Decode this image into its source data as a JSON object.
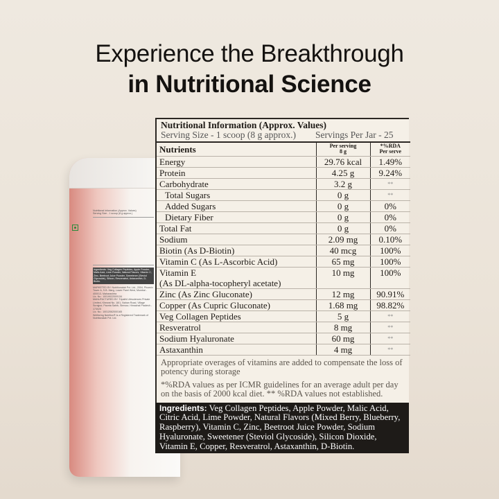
{
  "headline": {
    "line1": "Experience the Breakthrough",
    "line2": "in Nutritional Science"
  },
  "panel": {
    "title": "Nutritional Information (Approx. Values)",
    "serving_size": "Serving Size - 1 scoop (8 g approx.)",
    "servings_per_jar": "Servings Per Jar - 25",
    "columns": {
      "nutrients": "Nutrients",
      "per_serving": "Per serving",
      "per_serving_unit": "8 g",
      "rda": "*%RDA",
      "rda_unit": "Per serve"
    },
    "rows": [
      {
        "name": "Energy",
        "amount": "29.76 kcal",
        "rda": "1.49%"
      },
      {
        "name": "Protein",
        "amount": "4.25 g",
        "rda": "9.24%"
      },
      {
        "name": "Carbohydrate",
        "amount": "3.2 g",
        "rda": "**"
      },
      {
        "name": "Total Sugars",
        "amount": "0 g",
        "rda": "**"
      },
      {
        "name": "Added Sugars",
        "amount": "0 g",
        "rda": "0%"
      },
      {
        "name": "Dietary Fiber",
        "amount": "0 g",
        "rda": "0%"
      },
      {
        "name": "Total Fat",
        "amount": "0 g",
        "rda": "0%"
      },
      {
        "name": "Sodium",
        "amount": "2.09 mg",
        "rda": "0.10%"
      },
      {
        "name": "Biotin (As D-Biotin)",
        "amount": "40 mcg",
        "rda": "100%"
      },
      {
        "name": "Vitamin C (As L-Ascorbic Acid)",
        "amount": "65 mg",
        "rda": "100%"
      },
      {
        "name": "Vitamin E",
        "name2": "(As DL-alpha-tocopheryl acetate)",
        "amount": "10 mg",
        "rda": "100%"
      },
      {
        "name": "Zinc (As Zinc Gluconate)",
        "amount": "12 mg",
        "rda": "90.91%"
      },
      {
        "name": "Copper (As Cupric Gluconate)",
        "amount": "1.68 mg",
        "rda": "98.82%"
      },
      {
        "name": "Veg Collagen Peptides",
        "amount": "5 g",
        "rda": "**"
      },
      {
        "name": "Resveratrol",
        "amount": "8 mg",
        "rda": "**"
      },
      {
        "name": "Sodium Hyaluronate",
        "amount": "60 mg",
        "rda": "**"
      },
      {
        "name": "Astaxanthin",
        "amount": "4 mg",
        "rda": "**"
      }
    ],
    "note1": "Appropriate overages of vitamins are added to compensate the loss of potency during storage",
    "note2": "*%RDA values as per ICMR guidelines for an average adult per day on the basis of 2000 kcal diet. ** %RDA values not established."
  },
  "ingredients": {
    "label": "Ingredients:",
    "text": "Veg Collagen Peptides, Apple Powder, Malic Acid, Citric Acid, Lime Powder, Natural Flavors (Mixed Berry, Blueberry, Raspberry), Vitamin C, Zinc, Beetroot Juice Powder, Sodium Hyaluronate, Sweetener (Steviol Glycoside), Silicon Dioxide, Vitamin E, Copper, Resveratrol, Astaxanthin, D-Biotin."
  },
  "jar_label": {
    "title": "Nutritional Information (Approx. Values)",
    "serving": "Serving Size - 1 scoop (8 g approx.)",
    "ingredients": "Ingredients: Veg Collagen Peptides, Apple Powder, Malic Acid, Lime Powder, Natural Flavors, Vitamin C, Zinc, Beetroot Juice Powder, Sweetener (Steviol Glycoside), Silicon, Resveratrol, Astaxanthin, D-Biotin.",
    "marketed_by": "MARKETED BY: Nutritionalab Pvt. Ltd., 2004, Phoenix Tower A, S.B. Marg, Lower Parel West, Mumbai - 400013, Maharashtra",
    "fssai": "Lic. No.: 10019022009134",
    "manufactured_by": "MANUFACTURED BY: Tripathi Lifesciences Private Limited, Khewat No. 18/1, Nahan Road, Village Surajpur, Paonta Sahib, Sirmour, Himachal Pradesh - 173025",
    "mfg_lic": "Lic. No.: 10012062000165",
    "trademark": "Wellbeing Nutrition® is a Registered Trademark of Nutritionalab Pvt. Ltd."
  },
  "colors": {
    "panel_bg": "#f5f0e7",
    "ingredients_bg": "#1e1b18",
    "jar_accent": "#d88a80"
  }
}
